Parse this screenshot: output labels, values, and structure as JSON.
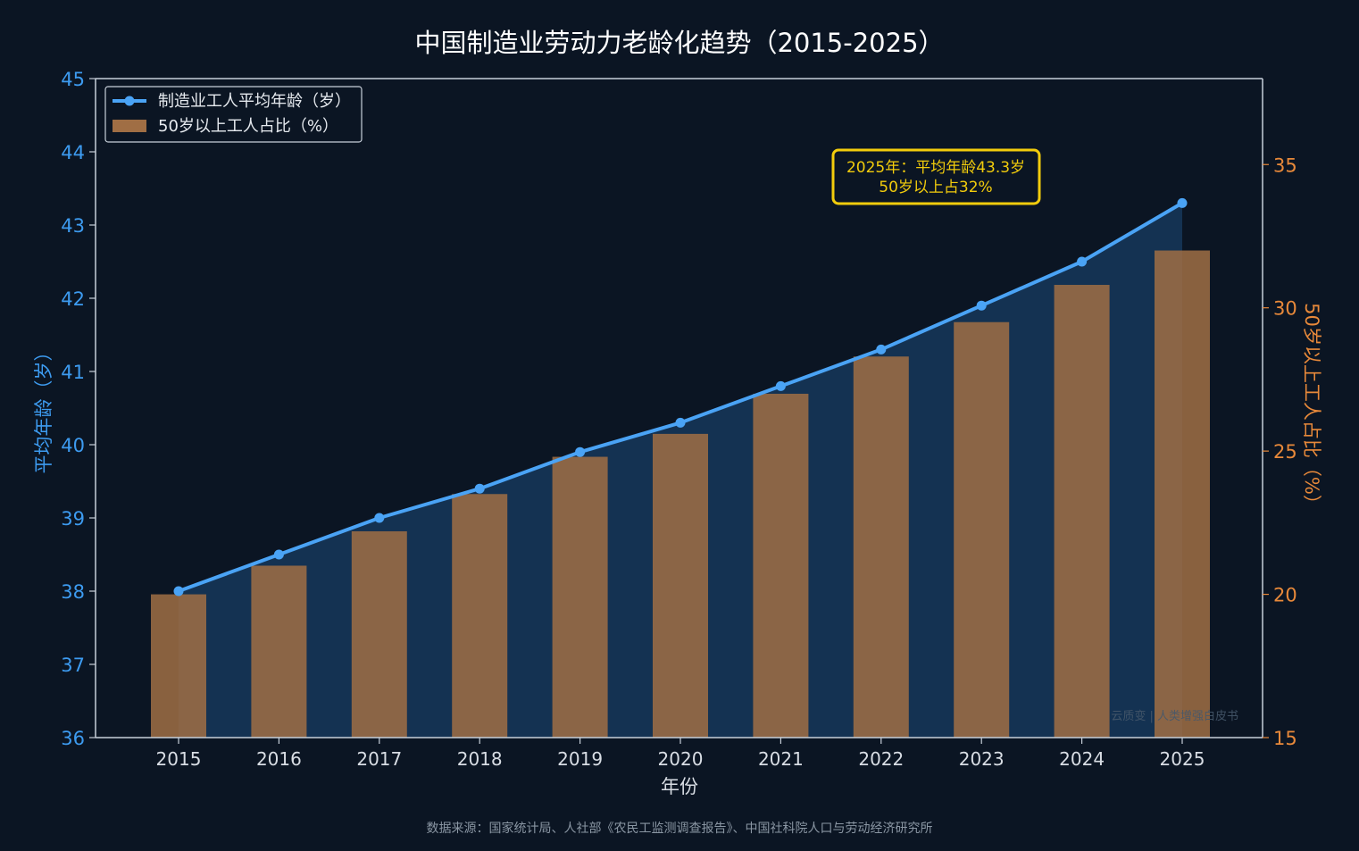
{
  "title": "中国制造业劳动力老龄化趋势（2015-2025）",
  "source_note": "数据来源：国家统计局、人社部《农民工监测调查报告》、中国社科院人口与劳动经济研究所",
  "watermark": "云质变 | 人类增强白皮书",
  "annotation": {
    "line1": "2025年：平均年龄43.3岁",
    "line2": "50岁以上占32%",
    "color": "#f2cc0c"
  },
  "colors": {
    "background": "#0b1523",
    "line": "#4aa3f5",
    "bar": "#a06e44",
    "left_axis": "#3d9bf0",
    "right_axis": "#e8893a",
    "axis_frame": "#c8d0da",
    "tick_text": "#d8dde4"
  },
  "chart_data": {
    "type": "bar+line",
    "title": "中国制造业劳动力老龄化趋势（2015-2025）",
    "xlabel": "年份",
    "ylabel_left": "平均年龄（岁）",
    "ylabel_right": "50岁以上工人占比（%）",
    "categories": [
      "2015",
      "2016",
      "2017",
      "2018",
      "2019",
      "2020",
      "2021",
      "2022",
      "2023",
      "2024",
      "2025"
    ],
    "series": [
      {
        "name": "制造业工人平均年龄（岁）",
        "type": "line",
        "axis": "left",
        "values": [
          38.0,
          38.5,
          39.0,
          39.4,
          39.9,
          40.3,
          40.8,
          41.3,
          41.9,
          42.5,
          43.3
        ]
      },
      {
        "name": "50岁以上工人占比（%）",
        "type": "bar",
        "axis": "right",
        "values": [
          20.0,
          21.0,
          22.2,
          23.5,
          24.8,
          25.6,
          27.0,
          28.3,
          29.5,
          30.8,
          32.0
        ]
      }
    ],
    "ylim_left": [
      36,
      45
    ],
    "yticks_left": [
      36,
      37,
      38,
      39,
      40,
      41,
      42,
      43,
      44,
      45
    ],
    "ylim_right": [
      15,
      38
    ],
    "yticks_right": [
      15,
      20,
      25,
      30,
      35
    ],
    "grid": false,
    "legend_position": "top-left"
  }
}
